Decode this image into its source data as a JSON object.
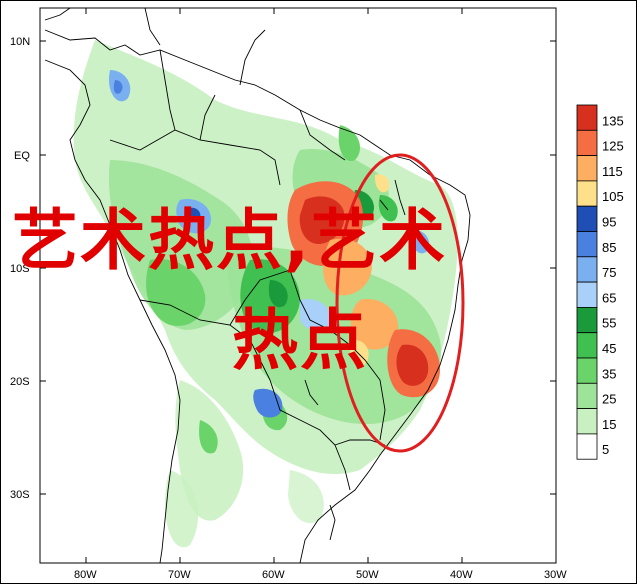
{
  "map": {
    "lat_labels": [
      "10N",
      "EQ",
      "10S",
      "20S",
      "30S"
    ],
    "lon_labels": [
      "80W",
      "70W",
      "60W",
      "50W",
      "40W",
      "30W"
    ]
  },
  "colorbar": {
    "levels": [
      "135",
      "125",
      "115",
      "105",
      "95",
      "85",
      "75",
      "65",
      "55",
      "45",
      "35",
      "25",
      "15",
      "5"
    ],
    "colors": [
      "#d7301f",
      "#f46d43",
      "#fdae61",
      "#fee08b",
      "#1f4fb4",
      "#4a80e0",
      "#7aaff0",
      "#a8d0f8",
      "#1a9a3a",
      "#3fc050",
      "#6ad46a",
      "#9ee39a",
      "#c8f0c0",
      "#ffffff"
    ]
  },
  "overlay": {
    "line1": "艺术热点,艺术",
    "line2": "热点"
  },
  "highlight_color": "#e02020"
}
